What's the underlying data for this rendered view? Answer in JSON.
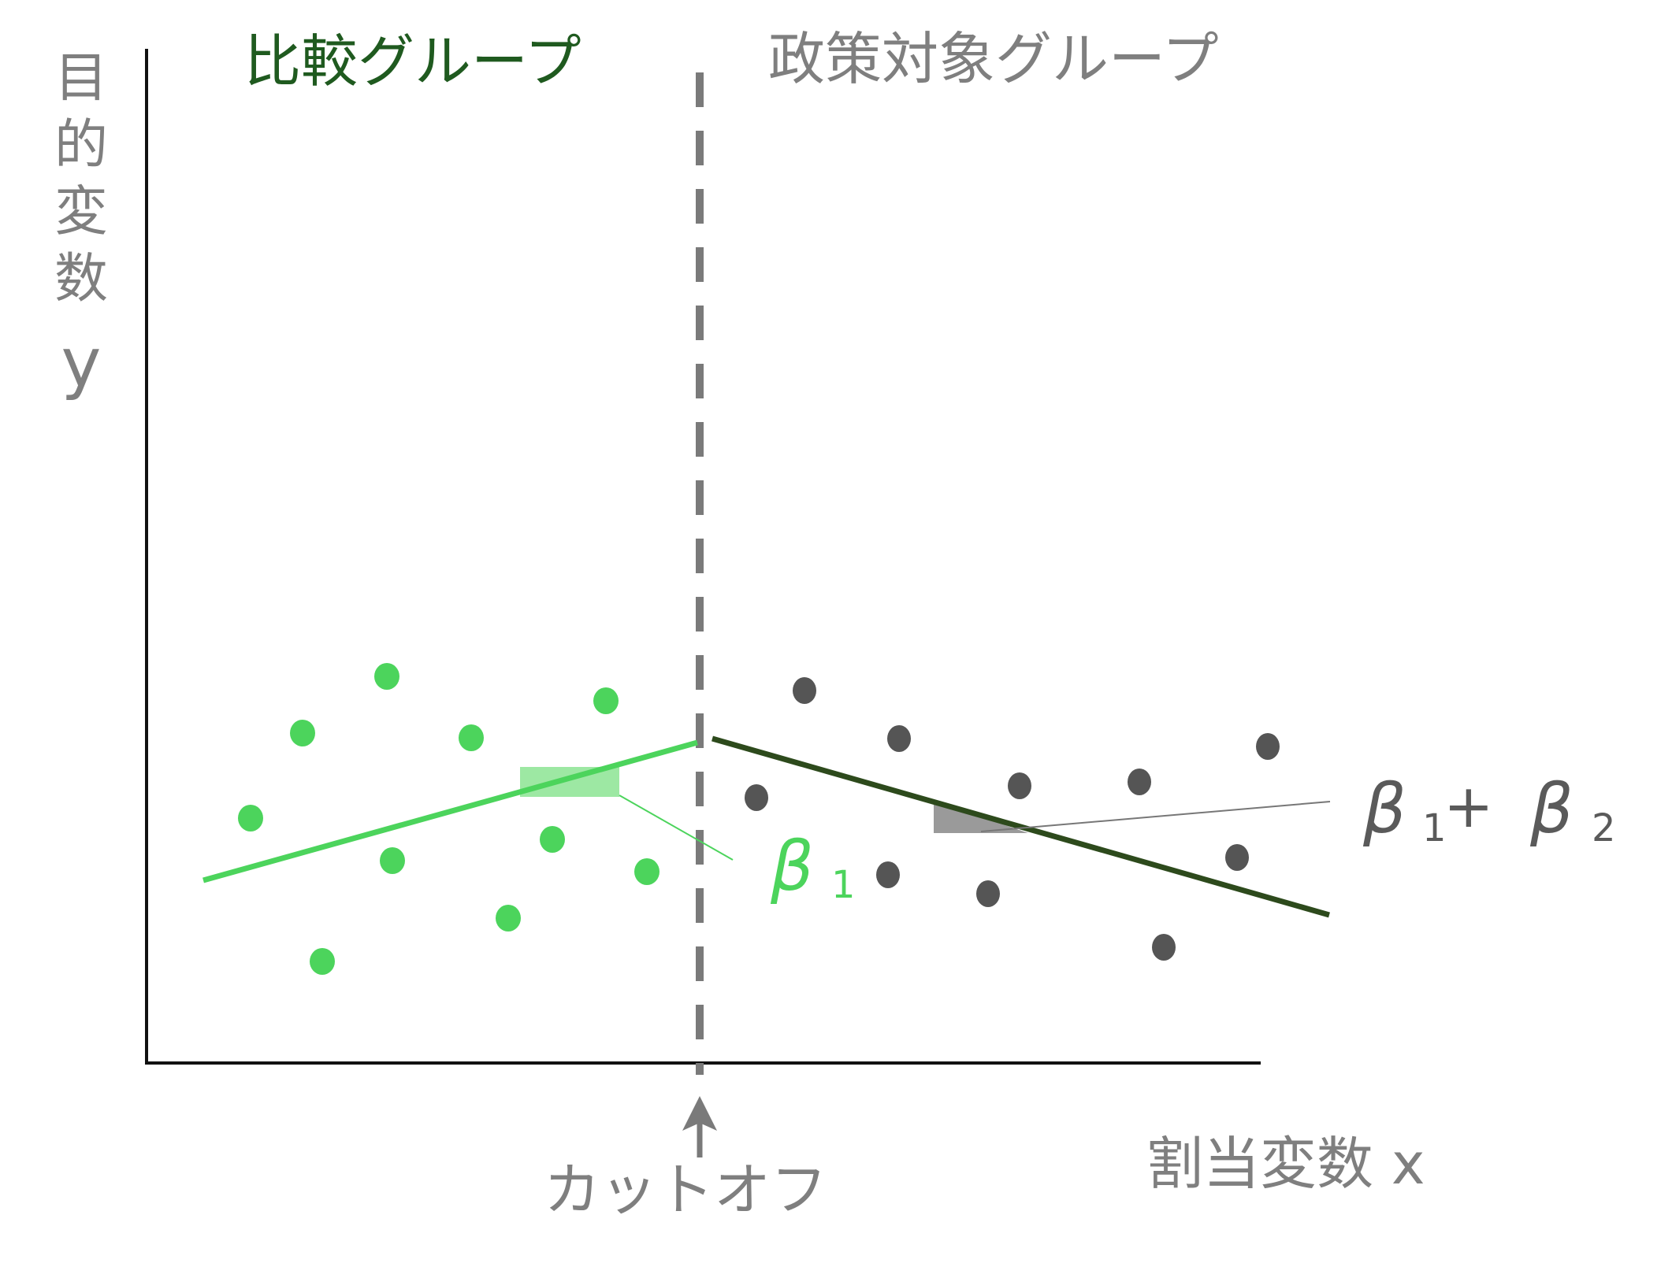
{
  "labels": {
    "comparison_group": "比較グループ",
    "treatment_group": "政策対象グループ",
    "y_axis_chars": [
      "目",
      "的",
      "変",
      "数"
    ],
    "y_axis_var": "y",
    "x_axis": "割当変数 x",
    "cutoff": "カットオフ",
    "beta1_left": "β",
    "beta1_left_sub": "1",
    "beta_sum_a": "β",
    "beta_sum_a_sub": "1",
    "beta_sum_plus": "+",
    "beta_sum_b": "β",
    "beta_sum_b_sub": "2"
  },
  "colors": {
    "comparison_title": "#1f5a1f",
    "axis_label": "#7f7f7f",
    "green_dot": "#4cd45c",
    "green_line": "#4cd45c",
    "green_triangle": "#9de8a3",
    "dark_dot": "#555555",
    "dark_line": "#2d4a1c",
    "gray_triangle": "#9a9a9a",
    "cutoff_line": "#7a7a7a",
    "beta1_text": "#4cd45c",
    "beta_sum_text": "#5a5a5a"
  }
}
